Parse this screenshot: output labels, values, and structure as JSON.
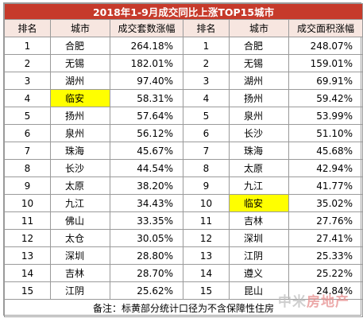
{
  "title": "2018年1-9月成交同比上涨TOP15城市",
  "headers": [
    "排名",
    "城市",
    "成交套数涨幅",
    "排名",
    "城市",
    "成交面积涨幅"
  ],
  "rows": [
    {
      "rank_a": "1",
      "city_a": "合肥",
      "pct_a": "264.18%",
      "rank_b": "1",
      "city_b": "合肥",
      "pct_b": "248.07%",
      "hl_a": false,
      "hl_b": false
    },
    {
      "rank_a": "2",
      "city_a": "无锡",
      "pct_a": "182.01%",
      "rank_b": "2",
      "city_b": "无锡",
      "pct_b": "159.01%",
      "hl_a": false,
      "hl_b": false
    },
    {
      "rank_a": "3",
      "city_a": "湖州",
      "pct_a": "97.40%",
      "rank_b": "3",
      "city_b": "湖州",
      "pct_b": "69.91%",
      "hl_a": false,
      "hl_b": false
    },
    {
      "rank_a": "4",
      "city_a": "临安",
      "pct_a": "58.31%",
      "rank_b": "4",
      "city_b": "扬州",
      "pct_b": "59.42%",
      "hl_a": true,
      "hl_b": false
    },
    {
      "rank_a": "5",
      "city_a": "扬州",
      "pct_a": "57.64%",
      "rank_b": "5",
      "city_b": "泉州",
      "pct_b": "53.99%",
      "hl_a": false,
      "hl_b": false
    },
    {
      "rank_a": "6",
      "city_a": "泉州",
      "pct_a": "56.12%",
      "rank_b": "6",
      "city_b": "长沙",
      "pct_b": "51.10%",
      "hl_a": false,
      "hl_b": false
    },
    {
      "rank_a": "7",
      "city_a": "珠海",
      "pct_a": "45.67%",
      "rank_b": "7",
      "city_b": "珠海",
      "pct_b": "45.68%",
      "hl_a": false,
      "hl_b": false
    },
    {
      "rank_a": "8",
      "city_a": "长沙",
      "pct_a": "44.54%",
      "rank_b": "8",
      "city_b": "太原",
      "pct_b": "42.94%",
      "hl_a": false,
      "hl_b": false
    },
    {
      "rank_a": "9",
      "city_a": "太原",
      "pct_a": "38.20%",
      "rank_b": "9",
      "city_b": "九江",
      "pct_b": "41.77%",
      "hl_a": false,
      "hl_b": false
    },
    {
      "rank_a": "10",
      "city_a": "九江",
      "pct_a": "34.43%",
      "rank_b": "10",
      "city_b": "临安",
      "pct_b": "35.02%",
      "hl_a": false,
      "hl_b": true
    },
    {
      "rank_a": "11",
      "city_a": "佛山",
      "pct_a": "33.35%",
      "rank_b": "11",
      "city_b": "吉林",
      "pct_b": "27.76%",
      "hl_a": false,
      "hl_b": false
    },
    {
      "rank_a": "12",
      "city_a": "太仓",
      "pct_a": "30.05%",
      "rank_b": "12",
      "city_b": "深圳",
      "pct_b": "27.41%",
      "hl_a": false,
      "hl_b": false
    },
    {
      "rank_a": "13",
      "city_a": "深圳",
      "pct_a": "28.80%",
      "rank_b": "13",
      "city_b": "江阴",
      "pct_b": "25.33%",
      "hl_a": false,
      "hl_b": false
    },
    {
      "rank_a": "14",
      "city_a": "吉林",
      "pct_a": "28.70%",
      "rank_b": "14",
      "city_b": "遵义",
      "pct_b": "25.22%",
      "hl_a": false,
      "hl_b": false
    },
    {
      "rank_a": "15",
      "city_a": "江阴",
      "pct_a": "25.62%",
      "rank_b": "15",
      "city_b": "昆山",
      "pct_b": "24.84%",
      "hl_a": false,
      "hl_b": false
    }
  ],
  "note": "备注：标黄部分统计口径为不含保障性住房",
  "watermark": {
    "part1": "中米",
    "part2": "房地产"
  },
  "colors": {
    "title_bg": "#c63a2b",
    "header_bg": "#f7e6e0",
    "highlight": "#ffff00",
    "border": "#9a9a9a"
  }
}
